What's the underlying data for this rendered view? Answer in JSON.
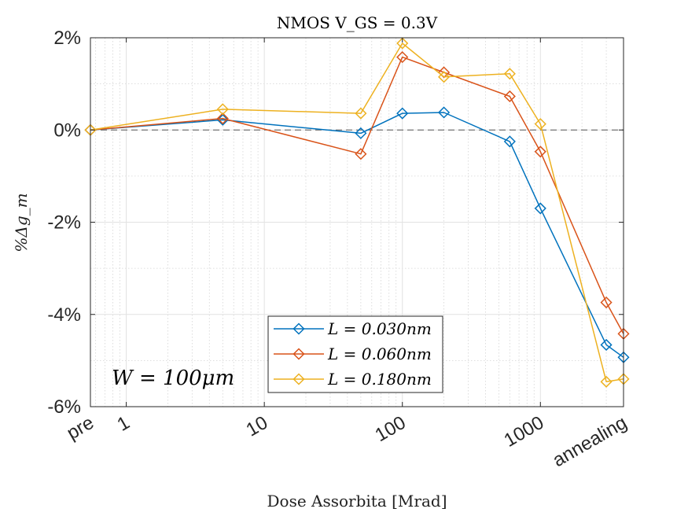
{
  "chart_data": {
    "type": "line",
    "title": "NMOS V_GS = 0.3V",
    "xlabel": "Dose Assorbita [Mrad]",
    "ylabel": "%Δg_m",
    "x_scale": "log",
    "xlim": [
      0.55,
      4000
    ],
    "ylim": [
      -6,
      2
    ],
    "x_ticks": [
      {
        "value": 0.55,
        "label": "pre"
      },
      {
        "value": 1,
        "label": "1"
      },
      {
        "value": 10,
        "label": "10"
      },
      {
        "value": 100,
        "label": "100"
      },
      {
        "value": 1000,
        "label": "1000"
      },
      {
        "value": 4000,
        "label": "annealing"
      }
    ],
    "y_ticks": [
      {
        "value": 2,
        "label": "2%"
      },
      {
        "value": 0,
        "label": "0%"
      },
      {
        "value": -2,
        "label": "-2%"
      },
      {
        "value": -4,
        "label": "-4%"
      },
      {
        "value": -6,
        "label": "-6%"
      }
    ],
    "x": [
      0.55,
      5,
      50,
      100,
      200,
      600,
      1000,
      3000,
      4000
    ],
    "series": [
      {
        "name": "L = 0.030nm",
        "color": "#0072BD",
        "values": [
          0,
          0.22,
          -0.07,
          0.36,
          0.38,
          -0.25,
          -1.7,
          -4.66,
          -4.93
        ]
      },
      {
        "name": "L = 0.060nm",
        "color": "#D95319",
        "values": [
          0,
          0.25,
          -0.52,
          1.58,
          1.25,
          0.73,
          -0.47,
          -3.74,
          -4.42
        ]
      },
      {
        "name": "L = 0.180nm",
        "color": "#EDB120",
        "values": [
          0,
          0.45,
          0.36,
          1.88,
          1.15,
          1.22,
          0.13,
          -5.46,
          -5.4
        ]
      }
    ],
    "reference_line": {
      "y": 0,
      "style": "dashed",
      "color": "#000000"
    },
    "annotation": "W = 100μm",
    "grid": true,
    "minor_grid": true,
    "legend_position": "bottom-center"
  }
}
